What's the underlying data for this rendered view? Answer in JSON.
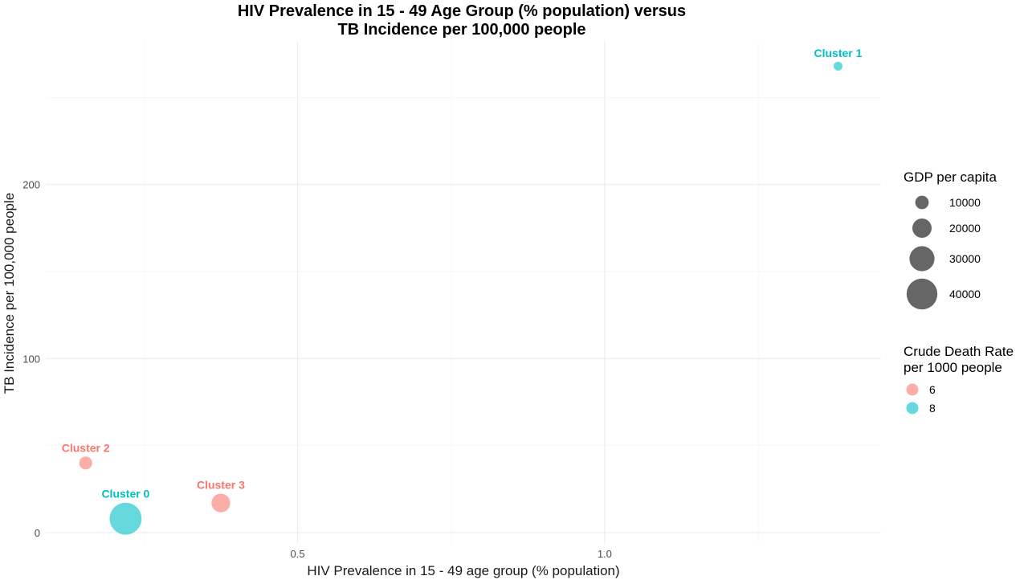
{
  "chart_data": {
    "type": "scatter",
    "title_line1": "HIV Prevalence in 15 - 49 Age Group (% population) versus",
    "title_line2": "TB Incidence per 100,000 people",
    "xlabel": "HIV Prevalence in 15 - 49 age group (% population)",
    "ylabel": "TB Incidence per 100,000 people",
    "xlim": [
      0.09,
      1.45
    ],
    "ylim": [
      -6,
      282
    ],
    "x_ticks": [
      0.5,
      1.0
    ],
    "x_tick_labels": [
      "0.5",
      "1.0"
    ],
    "x_minor_ticks": [
      0.25,
      0.75,
      1.25
    ],
    "y_ticks": [
      0,
      100,
      200
    ],
    "y_tick_labels": [
      "0",
      "100",
      "200"
    ],
    "y_minor_ticks": [
      50,
      150,
      250
    ],
    "grid": true,
    "points": [
      {
        "label": "Cluster 0",
        "x": 0.22,
        "y": 8,
        "gdp": 42000,
        "death_rate": 8
      },
      {
        "label": "Cluster 1",
        "x": 1.38,
        "y": 268,
        "gdp": 2000,
        "death_rate": 8
      },
      {
        "label": "Cluster 2",
        "x": 0.155,
        "y": 40,
        "gdp": 9000,
        "death_rate": 6
      },
      {
        "label": "Cluster 3",
        "x": 0.375,
        "y": 17,
        "gdp": 19000,
        "death_rate": 6
      }
    ],
    "size_legend": {
      "title": "GDP per capita",
      "entries": [
        {
          "label": "10000",
          "value": 10000
        },
        {
          "label": "20000",
          "value": 20000
        },
        {
          "label": "30000",
          "value": 30000
        },
        {
          "label": "40000",
          "value": 40000
        }
      ]
    },
    "color_legend": {
      "title_line1": "Crude Death Rate",
      "title_line2": "per 1000 people",
      "entries": [
        {
          "label": "6",
          "value": 6,
          "color": "#F8766D"
        },
        {
          "label": "8",
          "value": 8,
          "color": "#00BFC4"
        }
      ]
    },
    "legend_position": "right"
  }
}
